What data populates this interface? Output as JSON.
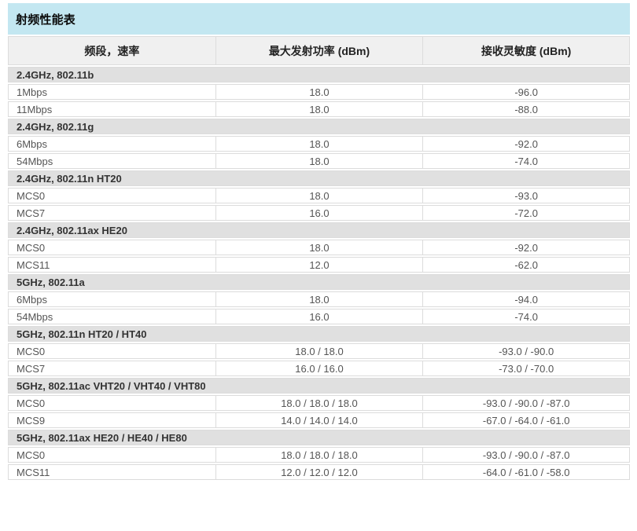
{
  "page": {
    "title": "射频性能表"
  },
  "colors": {
    "title_bg": "#c3e7f1",
    "header_bg": "#f0f0f0",
    "section_bg": "#e0e0e0",
    "border": "#dcdcdc"
  },
  "table": {
    "headers": [
      "频段，速率",
      "最大发射功率 (dBm)",
      "接收灵敏度 (dBm)"
    ],
    "sections": [
      {
        "label": "2.4GHz, 802.11b",
        "rows": [
          [
            "1Mbps",
            "18.0",
            "-96.0"
          ],
          [
            "11Mbps",
            "18.0",
            "-88.0"
          ]
        ]
      },
      {
        "label": "2.4GHz, 802.11g",
        "rows": [
          [
            "6Mbps",
            "18.0",
            "-92.0"
          ],
          [
            "54Mbps",
            "18.0",
            "-74.0"
          ]
        ]
      },
      {
        "label": "2.4GHz, 802.11n HT20",
        "rows": [
          [
            "MCS0",
            "18.0",
            "-93.0"
          ],
          [
            "MCS7",
            "16.0",
            "-72.0"
          ]
        ]
      },
      {
        "label": "2.4GHz, 802.11ax HE20",
        "rows": [
          [
            "MCS0",
            "18.0",
            "-92.0"
          ],
          [
            "MCS11",
            "12.0",
            "-62.0"
          ]
        ]
      },
      {
        "label": "5GHz, 802.11a",
        "rows": [
          [
            "6Mbps",
            "18.0",
            "-94.0"
          ],
          [
            "54Mbps",
            "16.0",
            "-74.0"
          ]
        ]
      },
      {
        "label": "5GHz, 802.11n HT20 / HT40",
        "rows": [
          [
            "MCS0",
            "18.0 / 18.0",
            "-93.0 / -90.0"
          ],
          [
            "MCS7",
            "16.0 / 16.0",
            "-73.0 / -70.0"
          ]
        ]
      },
      {
        "label": "5GHz, 802.11ac VHT20 / VHT40 / VHT80",
        "rows": [
          [
            "MCS0",
            "18.0 / 18.0 / 18.0",
            "-93.0 / -90.0 / -87.0"
          ],
          [
            "MCS9",
            "14.0 / 14.0 / 14.0",
            "-67.0 / -64.0 / -61.0"
          ]
        ]
      },
      {
        "label": "5GHz, 802.11ax HE20 / HE40 / HE80",
        "rows": [
          [
            "MCS0",
            "18.0 / 18.0 / 18.0",
            "-93.0 / -90.0 / -87.0"
          ],
          [
            "MCS11",
            "12.0 / 12.0 / 12.0",
            "-64.0 / -61.0 / -58.0"
          ]
        ]
      }
    ]
  }
}
